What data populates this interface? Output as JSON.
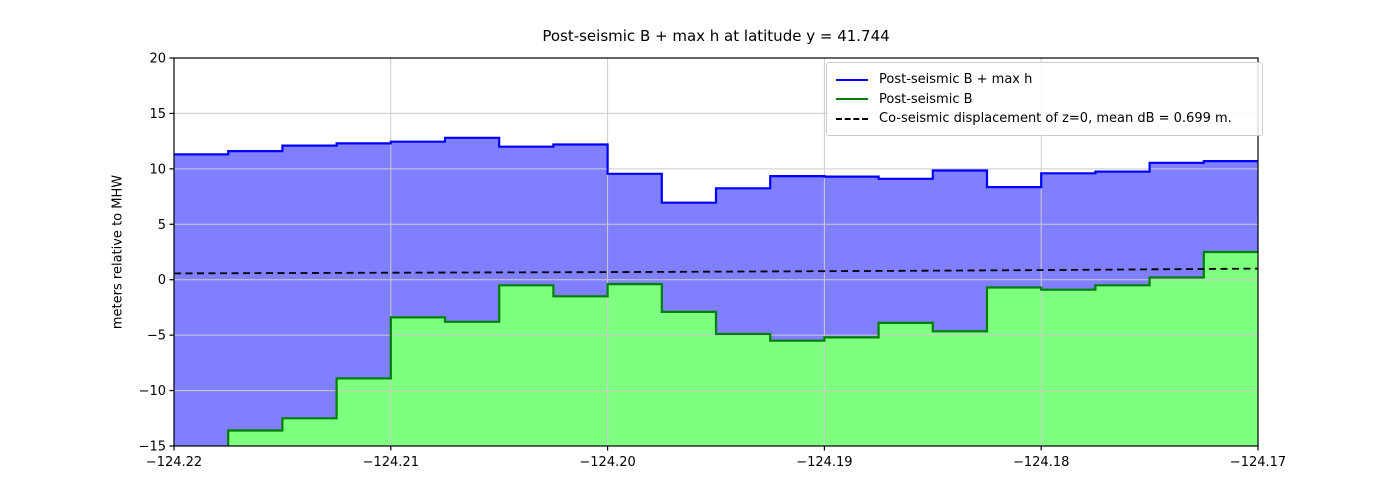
{
  "figure": {
    "background": "#ffffff"
  },
  "chart_title": "Post-seismic B + max h at latitude y = 41.744",
  "chart_data": {
    "type": "area",
    "title": "Post-seismic B + max h at latitude y = 41.744",
    "xlabel": "",
    "ylabel": "meters relative to MHW",
    "xlim": [
      -124.22,
      -124.17
    ],
    "ylim": [
      -15,
      20
    ],
    "grid": true,
    "legend_position": "upper right",
    "step_edges_longitude": [
      -124.22,
      -124.2175,
      -124.215,
      -124.2125,
      -124.21,
      -124.2075,
      -124.205,
      -124.2025,
      -124.2,
      -124.1975,
      -124.195,
      -124.1925,
      -124.19,
      -124.1875,
      -124.185,
      -124.1825,
      -124.18,
      -124.1775,
      -124.175,
      -124.1725,
      -124.17
    ],
    "series": [
      {
        "name": "Post-seismic B + max h",
        "style": "step-area",
        "line_color": "#0000ff",
        "fill_color": "rgba(0,0,255,0.5)",
        "values": [
          11.3,
          11.6,
          12.1,
          12.3,
          12.45,
          12.8,
          12.0,
          12.2,
          9.55,
          6.95,
          8.25,
          9.35,
          9.3,
          9.1,
          9.85,
          8.35,
          9.6,
          9.75,
          10.55,
          10.7
        ]
      },
      {
        "name": "Post-seismic B",
        "style": "step-area",
        "line_color": "#008000",
        "fill_color": "rgba(0,255,0,0.5)",
        "values": [
          -16,
          -13.6,
          -12.5,
          -8.9,
          -3.4,
          -3.8,
          -0.5,
          -1.5,
          -0.4,
          -2.9,
          -4.9,
          -5.5,
          -5.2,
          -3.9,
          -4.65,
          -0.7,
          -0.9,
          -0.5,
          0.2,
          2.5
        ]
      },
      {
        "name": "Co-seismic displacement of z=0, mean dB = 0.699 m.",
        "style": "dashed-line",
        "line_color": "#000000",
        "mean_dB_m": 0.699,
        "x": [
          -124.22,
          -124.21,
          -124.2,
          -124.19,
          -124.18,
          -124.17
        ],
        "y": [
          0.57,
          0.63,
          0.69,
          0.77,
          0.87,
          1.0
        ]
      }
    ],
    "xticks": {
      "values": [
        -124.22,
        -124.21,
        -124.2,
        -124.19,
        -124.18,
        -124.17
      ],
      "labels": [
        "−124.22",
        "−124.21",
        "−124.20",
        "−124.19",
        "−124.18",
        "−124.17"
      ]
    },
    "yticks": {
      "values": [
        -15,
        -10,
        -5,
        0,
        5,
        10,
        15,
        20
      ],
      "labels": [
        "−15",
        "−10",
        "−5",
        "0",
        "5",
        "10",
        "15",
        "20"
      ]
    },
    "colors": {
      "grid": "#cccccc",
      "spine": "#000000",
      "tick_text": "#000000"
    }
  },
  "legend": {
    "items": [
      {
        "label": "Post-seismic B + max h",
        "color": "#0000ff",
        "line": "solid"
      },
      {
        "label": "Post-seismic B",
        "color": "#008000",
        "line": "solid"
      },
      {
        "label": "Co-seismic displacement of z=0, mean dB = 0.699 m.",
        "color": "#000000",
        "line": "dashed"
      }
    ]
  }
}
